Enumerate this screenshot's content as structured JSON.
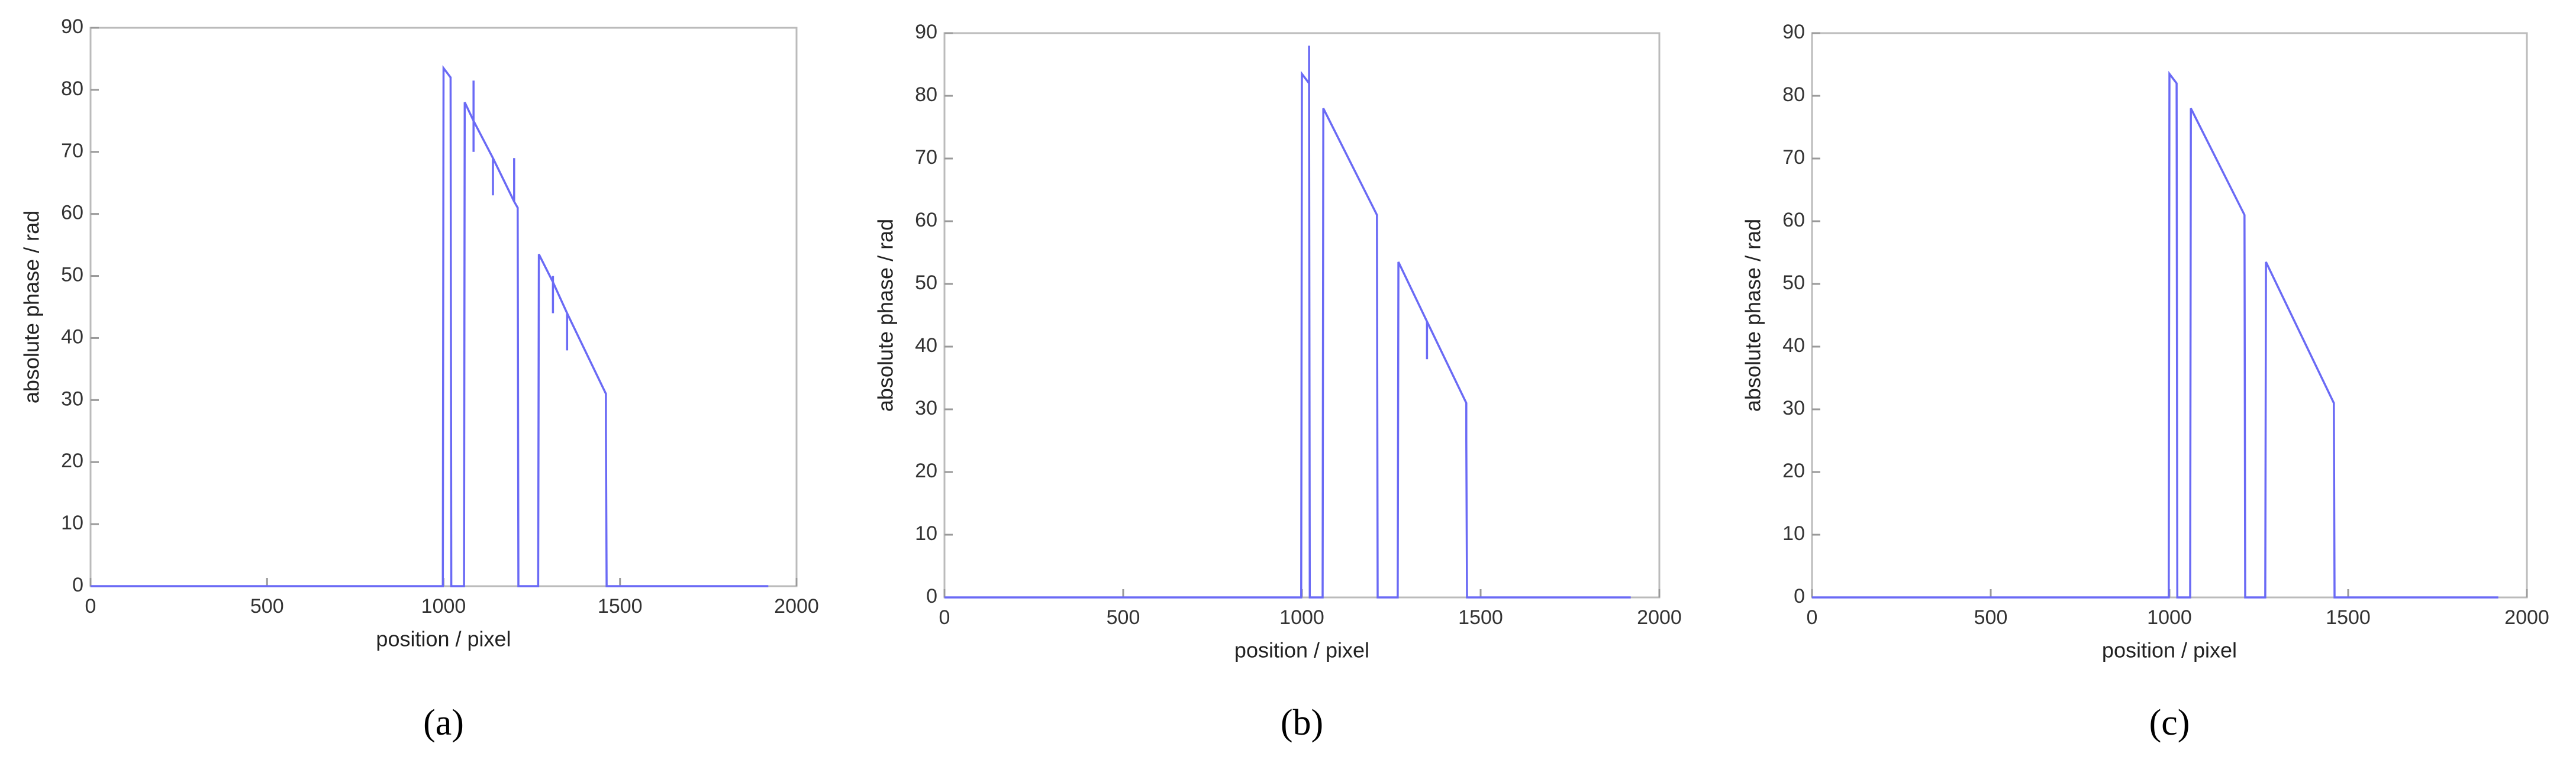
{
  "chart_data": [
    {
      "type": "line",
      "caption": "(a)",
      "xlabel": "position / pixel",
      "ylabel": "absolute phase / rad",
      "color": "#6a6af5",
      "xlim": [
        0,
        2000
      ],
      "ylim": [
        0,
        90
      ],
      "xticks": [
        0,
        500,
        1000,
        1500,
        2000
      ],
      "yticks": [
        0,
        10,
        20,
        30,
        40,
        50,
        60,
        70,
        80,
        90
      ],
      "x": [
        0,
        998,
        1000,
        1020,
        1022,
        1058,
        1060,
        1085,
        1085,
        1085,
        1085,
        1140,
        1140,
        1140,
        1200,
        1200,
        1200,
        1210,
        1212,
        1268,
        1270,
        1310,
        1310,
        1310,
        1310,
        1350,
        1350,
        1350,
        1460,
        1460,
        1462,
        1920
      ],
      "values": [
        0,
        0,
        83.5,
        82,
        0,
        0,
        78,
        75,
        70,
        81.5,
        75,
        69,
        63,
        69,
        62,
        69,
        62,
        61,
        0,
        0,
        53.5,
        49,
        44,
        50,
        49,
        44,
        38,
        44,
        31,
        25,
        0,
        0
      ]
    },
    {
      "type": "line",
      "caption": "(b)",
      "xlabel": "position / pixel",
      "ylabel": "absolute phase / rad",
      "color": "#6a6af5",
      "xlim": [
        0,
        2000
      ],
      "ylim": [
        0,
        90
      ],
      "xticks": [
        0,
        500,
        1000,
        1500,
        2000
      ],
      "yticks": [
        0,
        10,
        20,
        30,
        40,
        50,
        60,
        70,
        80,
        90
      ],
      "x": [
        0,
        998,
        1000,
        1020,
        1020,
        1020,
        1022,
        1058,
        1060,
        1210,
        1212,
        1268,
        1270,
        1350,
        1350,
        1350,
        1460,
        1460,
        1462,
        1920
      ],
      "values": [
        0,
        0,
        83.5,
        82,
        88,
        82,
        0,
        0,
        78,
        61,
        0,
        0,
        53.5,
        44,
        38,
        44,
        31,
        25,
        0,
        0
      ]
    },
    {
      "type": "line",
      "caption": "(c)",
      "xlabel": "position / pixel",
      "ylabel": "absolute phase / rad",
      "color": "#6a6af5",
      "xlim": [
        0,
        2000
      ],
      "ylim": [
        0,
        90
      ],
      "xticks": [
        0,
        500,
        1000,
        1500,
        2000
      ],
      "yticks": [
        0,
        10,
        20,
        30,
        40,
        50,
        60,
        70,
        80,
        90
      ],
      "x": [
        0,
        998,
        1000,
        1020,
        1022,
        1058,
        1060,
        1210,
        1212,
        1268,
        1270,
        1460,
        1462,
        1920
      ],
      "values": [
        0,
        0,
        83.5,
        82,
        0,
        0,
        78,
        61,
        0,
        0,
        53.5,
        31,
        0,
        0
      ]
    }
  ]
}
